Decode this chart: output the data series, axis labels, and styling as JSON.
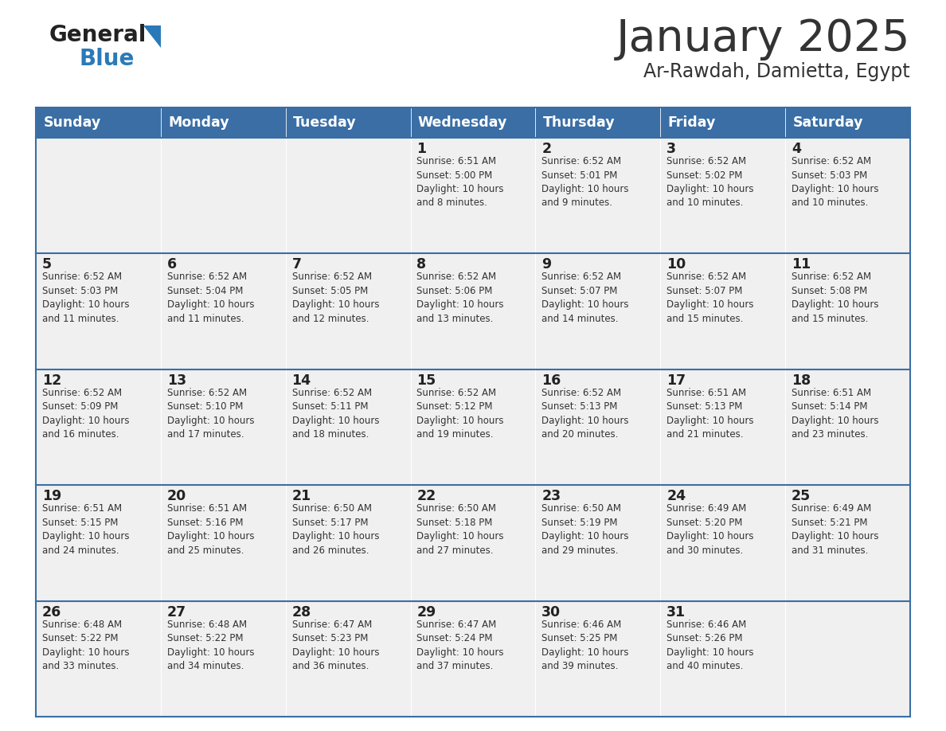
{
  "title": "January 2025",
  "subtitle": "Ar-Rawdah, Damietta, Egypt",
  "header_bg": "#3a6ea5",
  "header_text_color": "#ffffff",
  "cell_bg": "#f0f0f0",
  "border_color": "#3a6ea5",
  "text_color": "#333333",
  "day_num_color": "#222222",
  "logo_general_color": "#222222",
  "logo_blue_color": "#2a7ab8",
  "logo_triangle_color": "#2a7ab8",
  "days_of_week": [
    "Sunday",
    "Monday",
    "Tuesday",
    "Wednesday",
    "Thursday",
    "Friday",
    "Saturday"
  ],
  "calendar": [
    [
      {
        "day": null,
        "info": null
      },
      {
        "day": null,
        "info": null
      },
      {
        "day": null,
        "info": null
      },
      {
        "day": 1,
        "info": "Sunrise: 6:51 AM\nSunset: 5:00 PM\nDaylight: 10 hours\nand 8 minutes."
      },
      {
        "day": 2,
        "info": "Sunrise: 6:52 AM\nSunset: 5:01 PM\nDaylight: 10 hours\nand 9 minutes."
      },
      {
        "day": 3,
        "info": "Sunrise: 6:52 AM\nSunset: 5:02 PM\nDaylight: 10 hours\nand 10 minutes."
      },
      {
        "day": 4,
        "info": "Sunrise: 6:52 AM\nSunset: 5:03 PM\nDaylight: 10 hours\nand 10 minutes."
      }
    ],
    [
      {
        "day": 5,
        "info": "Sunrise: 6:52 AM\nSunset: 5:03 PM\nDaylight: 10 hours\nand 11 minutes."
      },
      {
        "day": 6,
        "info": "Sunrise: 6:52 AM\nSunset: 5:04 PM\nDaylight: 10 hours\nand 11 minutes."
      },
      {
        "day": 7,
        "info": "Sunrise: 6:52 AM\nSunset: 5:05 PM\nDaylight: 10 hours\nand 12 minutes."
      },
      {
        "day": 8,
        "info": "Sunrise: 6:52 AM\nSunset: 5:06 PM\nDaylight: 10 hours\nand 13 minutes."
      },
      {
        "day": 9,
        "info": "Sunrise: 6:52 AM\nSunset: 5:07 PM\nDaylight: 10 hours\nand 14 minutes."
      },
      {
        "day": 10,
        "info": "Sunrise: 6:52 AM\nSunset: 5:07 PM\nDaylight: 10 hours\nand 15 minutes."
      },
      {
        "day": 11,
        "info": "Sunrise: 6:52 AM\nSunset: 5:08 PM\nDaylight: 10 hours\nand 15 minutes."
      }
    ],
    [
      {
        "day": 12,
        "info": "Sunrise: 6:52 AM\nSunset: 5:09 PM\nDaylight: 10 hours\nand 16 minutes."
      },
      {
        "day": 13,
        "info": "Sunrise: 6:52 AM\nSunset: 5:10 PM\nDaylight: 10 hours\nand 17 minutes."
      },
      {
        "day": 14,
        "info": "Sunrise: 6:52 AM\nSunset: 5:11 PM\nDaylight: 10 hours\nand 18 minutes."
      },
      {
        "day": 15,
        "info": "Sunrise: 6:52 AM\nSunset: 5:12 PM\nDaylight: 10 hours\nand 19 minutes."
      },
      {
        "day": 16,
        "info": "Sunrise: 6:52 AM\nSunset: 5:13 PM\nDaylight: 10 hours\nand 20 minutes."
      },
      {
        "day": 17,
        "info": "Sunrise: 6:51 AM\nSunset: 5:13 PM\nDaylight: 10 hours\nand 21 minutes."
      },
      {
        "day": 18,
        "info": "Sunrise: 6:51 AM\nSunset: 5:14 PM\nDaylight: 10 hours\nand 23 minutes."
      }
    ],
    [
      {
        "day": 19,
        "info": "Sunrise: 6:51 AM\nSunset: 5:15 PM\nDaylight: 10 hours\nand 24 minutes."
      },
      {
        "day": 20,
        "info": "Sunrise: 6:51 AM\nSunset: 5:16 PM\nDaylight: 10 hours\nand 25 minutes."
      },
      {
        "day": 21,
        "info": "Sunrise: 6:50 AM\nSunset: 5:17 PM\nDaylight: 10 hours\nand 26 minutes."
      },
      {
        "day": 22,
        "info": "Sunrise: 6:50 AM\nSunset: 5:18 PM\nDaylight: 10 hours\nand 27 minutes."
      },
      {
        "day": 23,
        "info": "Sunrise: 6:50 AM\nSunset: 5:19 PM\nDaylight: 10 hours\nand 29 minutes."
      },
      {
        "day": 24,
        "info": "Sunrise: 6:49 AM\nSunset: 5:20 PM\nDaylight: 10 hours\nand 30 minutes."
      },
      {
        "day": 25,
        "info": "Sunrise: 6:49 AM\nSunset: 5:21 PM\nDaylight: 10 hours\nand 31 minutes."
      }
    ],
    [
      {
        "day": 26,
        "info": "Sunrise: 6:48 AM\nSunset: 5:22 PM\nDaylight: 10 hours\nand 33 minutes."
      },
      {
        "day": 27,
        "info": "Sunrise: 6:48 AM\nSunset: 5:22 PM\nDaylight: 10 hours\nand 34 minutes."
      },
      {
        "day": 28,
        "info": "Sunrise: 6:47 AM\nSunset: 5:23 PM\nDaylight: 10 hours\nand 36 minutes."
      },
      {
        "day": 29,
        "info": "Sunrise: 6:47 AM\nSunset: 5:24 PM\nDaylight: 10 hours\nand 37 minutes."
      },
      {
        "day": 30,
        "info": "Sunrise: 6:46 AM\nSunset: 5:25 PM\nDaylight: 10 hours\nand 39 minutes."
      },
      {
        "day": 31,
        "info": "Sunrise: 6:46 AM\nSunset: 5:26 PM\nDaylight: 10 hours\nand 40 minutes."
      },
      {
        "day": null,
        "info": null
      }
    ]
  ],
  "fig_width": 11.88,
  "fig_height": 9.18,
  "dpi": 100
}
